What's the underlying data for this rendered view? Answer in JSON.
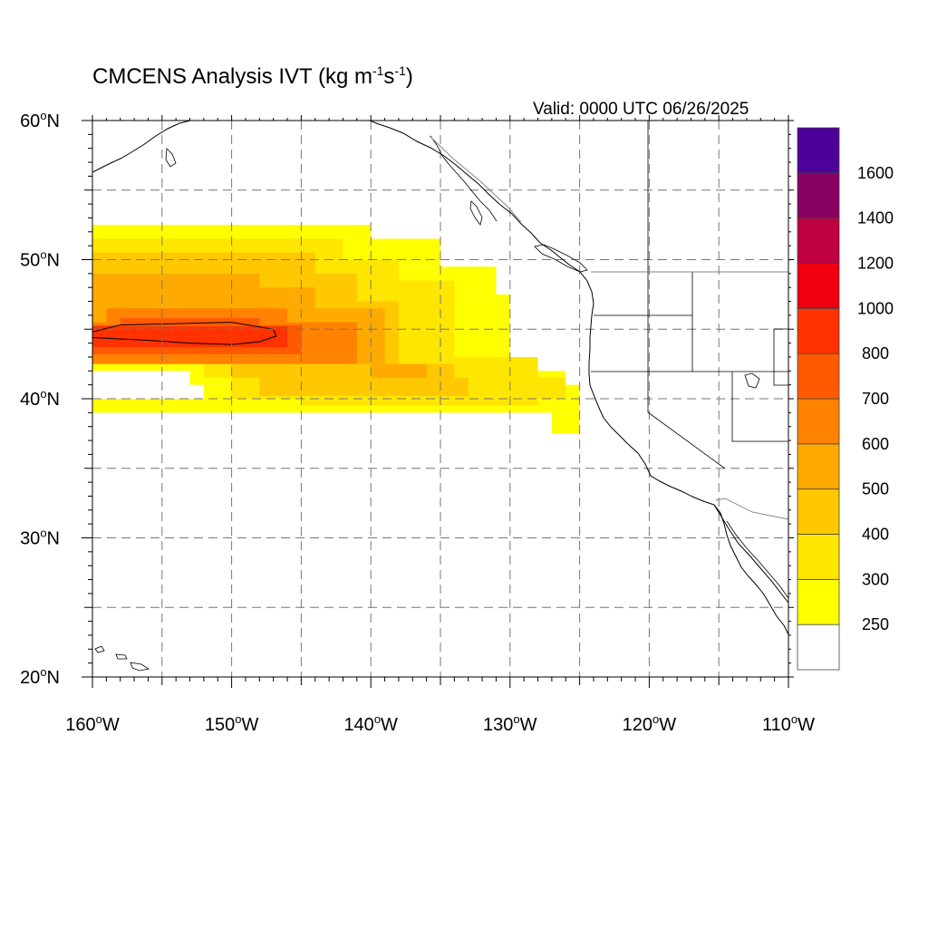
{
  "title": {
    "prefix": "CMCENS Analysis IVT (kg m",
    "sup1": "-1",
    "mid": "s",
    "sup2": "-1",
    "suffix": ")"
  },
  "valid_text": "Valid: 0000 UTC 06/26/2025",
  "map": {
    "projection": "cylindrical-equidistant",
    "lon_range": [
      -160,
      -110
    ],
    "lat_range": [
      20,
      60
    ],
    "gridlines": "dashed",
    "lat_ticks": [
      {
        "value": 60,
        "label": "60",
        "hemi": "N"
      },
      {
        "value": 50,
        "label": "50",
        "hemi": "N"
      },
      {
        "value": 40,
        "label": "40",
        "hemi": "N"
      },
      {
        "value": 30,
        "label": "30",
        "hemi": "N"
      },
      {
        "value": 20,
        "label": "20",
        "hemi": "N"
      }
    ],
    "lon_ticks": [
      {
        "value": -160,
        "label": "160",
        "hemi": "W"
      },
      {
        "value": -150,
        "label": "150",
        "hemi": "W"
      },
      {
        "value": -140,
        "label": "140",
        "hemi": "W"
      },
      {
        "value": -130,
        "label": "130",
        "hemi": "W"
      },
      {
        "value": -120,
        "label": "120",
        "hemi": "W"
      },
      {
        "value": -110,
        "label": "110",
        "hemi": "W"
      }
    ],
    "coast_color": "#000000",
    "border_color": "#808080"
  },
  "chart_data": {
    "type": "heatmap",
    "title": "CMCENS Analysis IVT (kg m-1s-1)",
    "subtitle": "Valid: 0000 UTC 06/26/2025",
    "x_range": [
      -160,
      -110
    ],
    "y_range": [
      20,
      60
    ],
    "legend_position": "right",
    "levels": [
      250,
      300,
      400,
      500,
      600,
      700,
      800,
      1000,
      1200,
      1400,
      1600
    ],
    "colors": [
      "#ffffff",
      "#ffff00",
      "#ffe600",
      "#ffc800",
      "#ffaa00",
      "#ff8200",
      "#ff5a00",
      "#ff3200",
      "#ee0010",
      "#c00040",
      "#880060",
      "#50009a"
    ],
    "ivt_bands": [
      {
        "level": 250,
        "segments": [
          [
            -160,
            -140,
            51.5,
            52.5
          ],
          [
            -160,
            -135,
            49.5,
            51.5
          ],
          [
            -160,
            -131,
            47.5,
            49.5
          ],
          [
            -160,
            -130,
            42.0,
            47.5
          ],
          [
            -153,
            -126,
            41.0,
            42.0
          ],
          [
            -152,
            -125,
            40.0,
            41.0
          ],
          [
            -160,
            -125,
            39.0,
            40.0
          ],
          [
            -127,
            -125,
            37.5,
            39.0
          ]
        ]
      },
      {
        "level": 300,
        "segments": [
          [
            -160,
            -142,
            50.0,
            51.5
          ],
          [
            -160,
            -138,
            48.5,
            50.0
          ],
          [
            -160,
            -134,
            43.0,
            48.5
          ],
          [
            -152,
            -128,
            41.5,
            43.0
          ],
          [
            -150,
            -126,
            40.0,
            41.5
          ],
          [
            -145,
            -128,
            39.5,
            40.0
          ]
        ]
      },
      {
        "level": 400,
        "segments": [
          [
            -160,
            -144,
            49.0,
            50.5
          ],
          [
            -160,
            -141,
            47.0,
            49.0
          ],
          [
            -160,
            -138,
            42.5,
            47.0
          ],
          [
            -150,
            -134,
            41.5,
            42.5
          ],
          [
            -148,
            -133,
            40.2,
            41.5
          ]
        ]
      },
      {
        "level": 500,
        "segments": [
          [
            -160,
            -148,
            48.0,
            49.0
          ],
          [
            -160,
            -144,
            46.5,
            48.0
          ],
          [
            -160,
            -139,
            42.5,
            46.5
          ],
          [
            -140,
            -136,
            41.5,
            42.5
          ]
        ]
      },
      {
        "level": 600,
        "segments": [
          [
            -159,
            -146,
            45.5,
            46.5
          ],
          [
            -160,
            -141,
            42.5,
            45.5
          ]
        ]
      },
      {
        "level": 700,
        "segments": [
          [
            -158,
            -148,
            45.0,
            45.8
          ],
          [
            -160,
            -145,
            43.2,
            45.3
          ]
        ]
      },
      {
        "level": 800,
        "segments": [
          [
            -160,
            -146,
            43.7,
            45.2
          ]
        ]
      }
    ],
    "contours": [
      {
        "level": 800,
        "points": [
          [
            -160,
            44.8
          ],
          [
            -158,
            45.3
          ],
          [
            -154,
            45.4
          ],
          [
            -150,
            45.5
          ],
          [
            -147,
            45.0
          ],
          [
            -146.8,
            44.5
          ],
          [
            -148,
            44.1
          ],
          [
            -150,
            43.9
          ],
          [
            -153,
            44.0
          ],
          [
            -156,
            44.2
          ],
          [
            -160,
            44.4
          ]
        ]
      }
    ]
  },
  "colorbar": {
    "tick_labels": [
      "250",
      "300",
      "400",
      "500",
      "600",
      "700",
      "800",
      "1000",
      "1200",
      "1400",
      "1600"
    ]
  }
}
